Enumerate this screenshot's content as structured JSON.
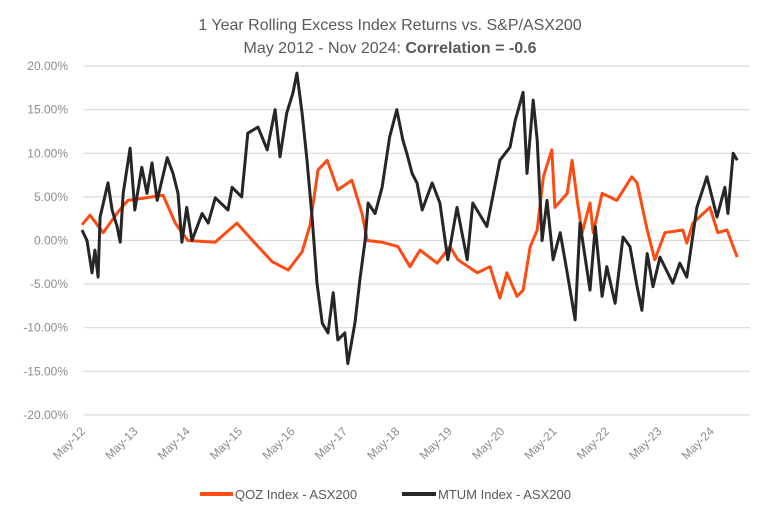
{
  "chart_data": {
    "type": "line",
    "title": "1 Year Rolling Excess Index Returns vs. S&P/ASX200",
    "subtitle_prefix": "May 2012 - Nov 2024: ",
    "subtitle_bold": "Correlation = -0.6",
    "xlabel": "",
    "ylabel": "",
    "ylim": [
      -20,
      20
    ],
    "yticks": [
      20,
      15,
      10,
      5,
      0,
      -5,
      -10,
      -15,
      -20
    ],
    "ytick_labels": [
      "20.00%",
      "15.00%",
      "10.00%",
      "5.00%",
      "0.00%",
      "-5.00%",
      "-10.00%",
      "-15.00%",
      "-20.00%"
    ],
    "xlim": [
      "2012-05-01",
      "2024-11-01"
    ],
    "xtick_dates": [
      "2012-05-01",
      "2013-05-01",
      "2014-05-01",
      "2015-05-01",
      "2016-05-01",
      "2017-05-01",
      "2018-05-01",
      "2019-05-01",
      "2020-05-01",
      "2021-05-01",
      "2022-05-01",
      "2023-05-01",
      "2024-05-01"
    ],
    "xtick_labels": [
      "May-12",
      "May-13",
      "May-14",
      "May-15",
      "May-16",
      "May-17",
      "May-18",
      "May-19",
      "May-20",
      "May-21",
      "May-22",
      "May-23",
      "May-24"
    ],
    "grid": "horizontal",
    "legend_position": "bottom",
    "series": [
      {
        "name": "QOZ Index - ASX200",
        "color": "#fc4c14",
        "points": [
          [
            "2012-05-01",
            1.8
          ],
          [
            "2012-06-26",
            2.9
          ],
          [
            "2012-09-25",
            0.9
          ],
          [
            "2013-01-08",
            3.3
          ],
          [
            "2013-03-17",
            4.6
          ],
          [
            "2013-09-02",
            5.0
          ],
          [
            "2013-11-17",
            5.2
          ],
          [
            "2014-02-10",
            2.0
          ],
          [
            "2014-05-09",
            0.0
          ],
          [
            "2014-11-15",
            -0.2
          ],
          [
            "2015-04-16",
            2.0
          ],
          [
            "2015-08-19",
            -0.3
          ],
          [
            "2015-12-16",
            -2.4
          ],
          [
            "2016-04-07",
            -3.4
          ],
          [
            "2016-07-13",
            -1.3
          ],
          [
            "2016-09-07",
            1.8
          ],
          [
            "2016-11-01",
            8.1
          ],
          [
            "2017-01-04",
            9.2
          ],
          [
            "2017-03-19",
            5.8
          ],
          [
            "2017-06-25",
            6.9
          ],
          [
            "2017-09-04",
            3.1
          ],
          [
            "2017-10-10",
            0.0
          ],
          [
            "2018-01-22",
            -0.2
          ],
          [
            "2018-05-13",
            -0.7
          ],
          [
            "2018-08-04",
            -3.0
          ],
          [
            "2018-10-13",
            -1.1
          ],
          [
            "2019-02-10",
            -2.6
          ],
          [
            "2019-05-10",
            -0.7
          ],
          [
            "2019-07-04",
            -2.2
          ],
          [
            "2019-11-16",
            -3.7
          ],
          [
            "2020-02-13",
            -3.0
          ],
          [
            "2020-04-22",
            -6.6
          ],
          [
            "2020-06-10",
            -3.7
          ],
          [
            "2020-08-19",
            -6.4
          ],
          [
            "2020-10-01",
            -5.7
          ],
          [
            "2020-11-19",
            -0.7
          ],
          [
            "2021-01-07",
            1.2
          ],
          [
            "2021-02-19",
            7.3
          ],
          [
            "2021-04-19",
            10.4
          ],
          [
            "2021-05-10",
            3.8
          ],
          [
            "2021-08-04",
            5.4
          ],
          [
            "2021-09-07",
            9.2
          ],
          [
            "2021-10-13",
            4.6
          ],
          [
            "2021-11-16",
            0.9
          ],
          [
            "2022-01-10",
            4.3
          ],
          [
            "2022-02-01",
            0.9
          ],
          [
            "2022-04-04",
            5.4
          ],
          [
            "2022-07-16",
            4.6
          ],
          [
            "2022-10-28",
            7.3
          ],
          [
            "2022-12-04",
            6.6
          ],
          [
            "2023-02-13",
            1.2
          ],
          [
            "2023-04-07",
            -2.2
          ],
          [
            "2023-06-16",
            0.9
          ],
          [
            "2023-10-19",
            1.2
          ],
          [
            "2023-11-16",
            -0.3
          ],
          [
            "2023-12-28",
            2.0
          ],
          [
            "2024-04-25",
            3.8
          ],
          [
            "2024-06-19",
            0.9
          ],
          [
            "2024-08-22",
            1.2
          ],
          [
            "2024-11-01",
            -1.9
          ]
        ]
      },
      {
        "name": "MTUM Index - ASX200",
        "color": "#262626",
        "points": [
          [
            "2012-05-01",
            1.2
          ],
          [
            "2012-06-05",
            0
          ],
          [
            "2012-07-10",
            -3.7
          ],
          [
            "2012-07-30",
            -1.1
          ],
          [
            "2012-08-21",
            -4.2
          ],
          [
            "2012-09-04",
            2.7
          ],
          [
            "2012-10-29",
            6.6
          ],
          [
            "2012-11-27",
            3.5
          ],
          [
            "2013-01-01",
            1.6
          ],
          [
            "2013-01-22",
            -0.2
          ],
          [
            "2013-02-12",
            5.4
          ],
          [
            "2013-04-01",
            10.6
          ],
          [
            "2013-05-04",
            3.5
          ],
          [
            "2013-06-22",
            8.4
          ],
          [
            "2013-07-28",
            5.4
          ],
          [
            "2013-09-01",
            8.9
          ],
          [
            "2013-10-07",
            4.6
          ],
          [
            "2013-12-16",
            9.5
          ],
          [
            "2014-01-25",
            7.7
          ],
          [
            "2014-03-01",
            5.4
          ],
          [
            "2014-03-28",
            -0.2
          ],
          [
            "2014-05-01",
            3.8
          ],
          [
            "2014-06-07",
            0
          ],
          [
            "2014-08-16",
            3.1
          ],
          [
            "2014-09-28",
            2.0
          ],
          [
            "2014-11-16",
            4.9
          ],
          [
            "2015-02-13",
            3.5
          ],
          [
            "2015-03-13",
            6.1
          ],
          [
            "2015-05-19",
            5.0
          ],
          [
            "2015-07-01",
            12.3
          ],
          [
            "2015-09-10",
            13.0
          ],
          [
            "2015-11-13",
            10.4
          ],
          [
            "2016-01-07",
            15.0
          ],
          [
            "2016-02-10",
            9.6
          ],
          [
            "2016-03-28",
            14.6
          ],
          [
            "2016-05-10",
            16.9
          ],
          [
            "2016-06-07",
            19.2
          ],
          [
            "2016-07-13",
            14.6
          ],
          [
            "2016-08-16",
            9.2
          ],
          [
            "2016-09-22",
            2.4
          ],
          [
            "2016-10-25",
            -4.9
          ],
          [
            "2016-12-01",
            -9.5
          ],
          [
            "2017-01-10",
            -10.6
          ],
          [
            "2017-02-15",
            -6.0
          ],
          [
            "2017-03-19",
            -11.4
          ],
          [
            "2017-05-07",
            -10.6
          ],
          [
            "2017-05-28",
            -14.1
          ],
          [
            "2017-07-16",
            -9.5
          ],
          [
            "2017-08-20",
            -4.5
          ],
          [
            "2017-09-25",
            0
          ],
          [
            "2017-10-16",
            4.3
          ],
          [
            "2017-12-04",
            3.1
          ],
          [
            "2018-01-22",
            6.1
          ],
          [
            "2018-03-16",
            11.9
          ],
          [
            "2018-05-04",
            15.0
          ],
          [
            "2018-06-16",
            11.5
          ],
          [
            "2018-07-13",
            10.0
          ],
          [
            "2018-08-19",
            7.7
          ],
          [
            "2018-09-22",
            6.6
          ],
          [
            "2018-10-28",
            3.5
          ],
          [
            "2019-01-06",
            6.6
          ],
          [
            "2019-03-01",
            4.3
          ],
          [
            "2019-04-25",
            -2.2
          ],
          [
            "2019-06-28",
            3.8
          ],
          [
            "2019-09-07",
            -2.2
          ],
          [
            "2019-10-16",
            4.3
          ],
          [
            "2020-01-22",
            1.6
          ],
          [
            "2020-04-22",
            9.2
          ],
          [
            "2020-07-01",
            10.7
          ],
          [
            "2020-08-07",
            13.8
          ],
          [
            "2020-10-01",
            17.0
          ],
          [
            "2020-10-28",
            7.7
          ],
          [
            "2020-12-10",
            16.1
          ],
          [
            "2021-01-07",
            11.5
          ],
          [
            "2021-02-10",
            0
          ],
          [
            "2021-03-16",
            4.6
          ],
          [
            "2021-04-28",
            -2.2
          ],
          [
            "2021-06-16",
            0.9
          ],
          [
            "2021-08-04",
            -3.7
          ],
          [
            "2021-09-28",
            -9.1
          ],
          [
            "2021-11-01",
            2.0
          ],
          [
            "2022-01-10",
            -5.7
          ],
          [
            "2022-02-16",
            1.6
          ],
          [
            "2022-04-04",
            -6.4
          ],
          [
            "2022-05-07",
            -3.0
          ],
          [
            "2022-07-04",
            -7.2
          ],
          [
            "2022-08-28",
            0.4
          ],
          [
            "2022-10-16",
            -0.7
          ],
          [
            "2022-12-04",
            -5.3
          ],
          [
            "2023-01-07",
            -8.0
          ],
          [
            "2023-02-13",
            -1.5
          ],
          [
            "2023-03-25",
            -5.3
          ],
          [
            "2023-05-13",
            -1.9
          ],
          [
            "2023-08-10",
            -4.9
          ],
          [
            "2023-09-28",
            -2.6
          ],
          [
            "2023-11-16",
            -4.2
          ],
          [
            "2024-01-25",
            3.8
          ],
          [
            "2024-04-04",
            7.3
          ],
          [
            "2024-06-13",
            2.7
          ],
          [
            "2024-08-07",
            6.1
          ],
          [
            "2024-08-28",
            3.1
          ],
          [
            "2024-10-04",
            10.0
          ],
          [
            "2024-11-01",
            9.2
          ]
        ]
      }
    ]
  }
}
